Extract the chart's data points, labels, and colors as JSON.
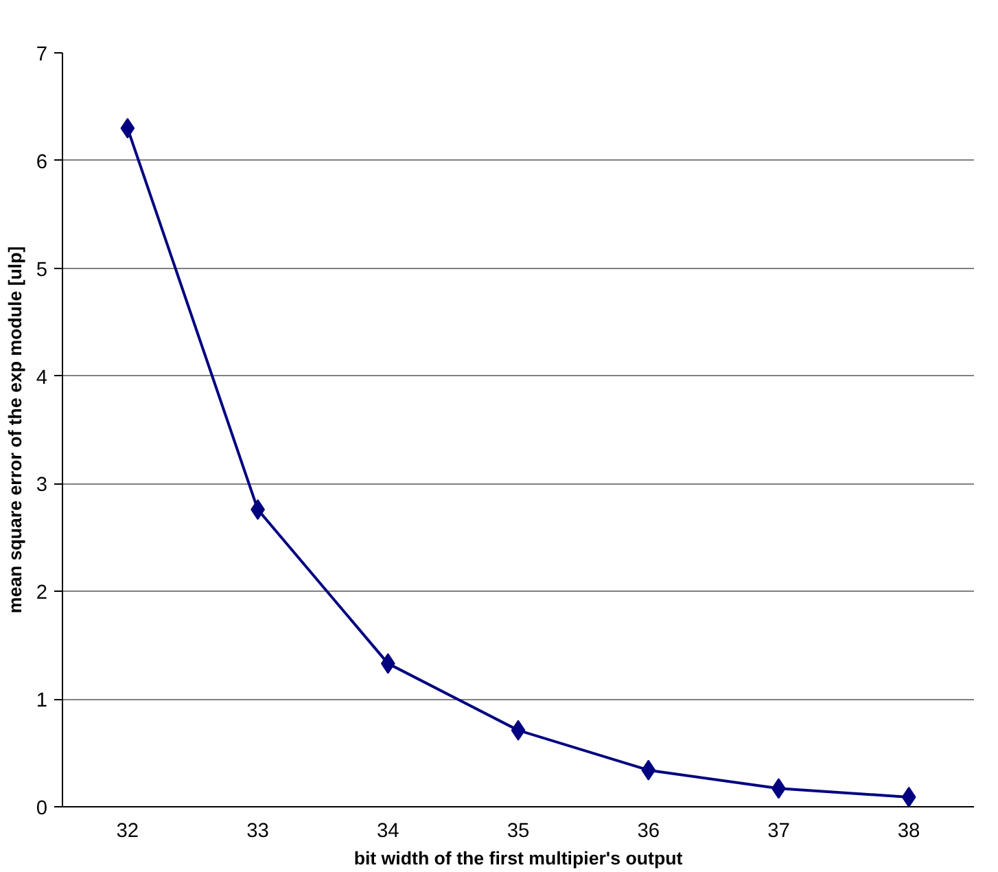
{
  "chart_data": {
    "type": "line",
    "xlabel": "bit width of the first multipier's output",
    "ylabel": "mean square error of the exp module [ulp]",
    "categories": [
      "32",
      "33",
      "34",
      "35",
      "36",
      "37",
      "38"
    ],
    "series": [
      {
        "color": "#000080",
        "values": [
          6.3,
          2.76,
          1.33,
          0.71,
          0.34,
          0.17,
          0.09
        ]
      }
    ],
    "ylim": [
      0,
      7
    ],
    "yticks": [
      0,
      1,
      2,
      3,
      4,
      5,
      6,
      7
    ],
    "grid": "y",
    "marker": "diamond",
    "line_style": "solid"
  }
}
